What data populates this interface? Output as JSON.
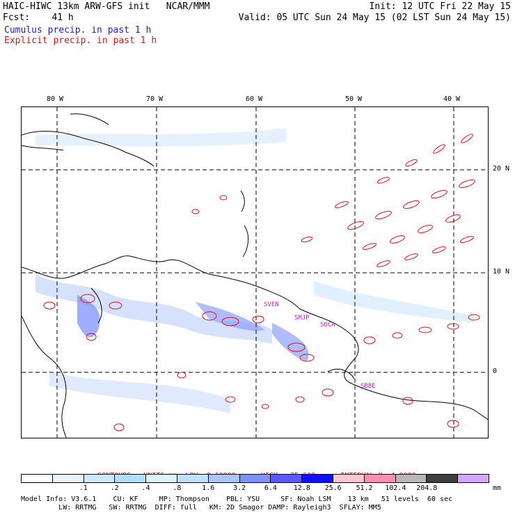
{
  "header": {
    "line1_left": "HAIC-HIWC 13km ARW-GFS init   NCAR/MMM",
    "line1_right": "Init: 12 UTC Fri 22 May 15",
    "line2_left": "Fcst:    41 h",
    "line2_right": "Valid: 05 UTC Sun 24 May 15 (02 LST Sun 24 May 15)",
    "cumulus_label": "Cumulus precip. in past 1 h",
    "explicit_label": "Explicit precip. in past 1 h"
  },
  "axes": {
    "longitudes": [
      "80 W",
      "70 W",
      "60 W",
      "50 W",
      "40 W"
    ],
    "latitudes": [
      "20 N",
      "10 N",
      "0"
    ]
  },
  "stations": [
    "SVEN",
    "SMJP",
    "SOCA",
    "SBBE"
  ],
  "contours": {
    "units_label": "CONTOURS:  UNITS=mm  LOW= 0.10000",
    "high_label": "HIGH=  25.600",
    "interval_label": "INTERVAL=X  4.0000"
  },
  "colorbar": {
    "colors": [
      "#ffffff",
      "#e6f4ff",
      "#cce9ff",
      "#b3deff",
      "#ddf3ff",
      "#c0e0ff",
      "#a8c8ff",
      "#7f93ff",
      "#5a5aff",
      "#1010ff",
      "#ffc8d0",
      "#ff90b4",
      "#b8b8b8",
      "#404040",
      "#d4a8ff"
    ],
    "ticks": [
      ".1",
      ".2",
      ".4",
      ".8",
      "1.6",
      "3.2",
      "6.4",
      "12.8",
      "25.6",
      "51.2",
      "102.4",
      "204.8"
    ],
    "unit": "mm"
  },
  "model_info": {
    "line1": "Model Info: V3.6.1    CU: KF     MP: Thompson    PBL: YSU     SF: Noah LSM    13 km   51 levels  60 sec",
    "line2": "         LW: RRTMG   SW: RRTMG  DIFF: full   KM: 2D Smagor DAMP: Rayleigh3  SFLAY: MM5"
  }
}
